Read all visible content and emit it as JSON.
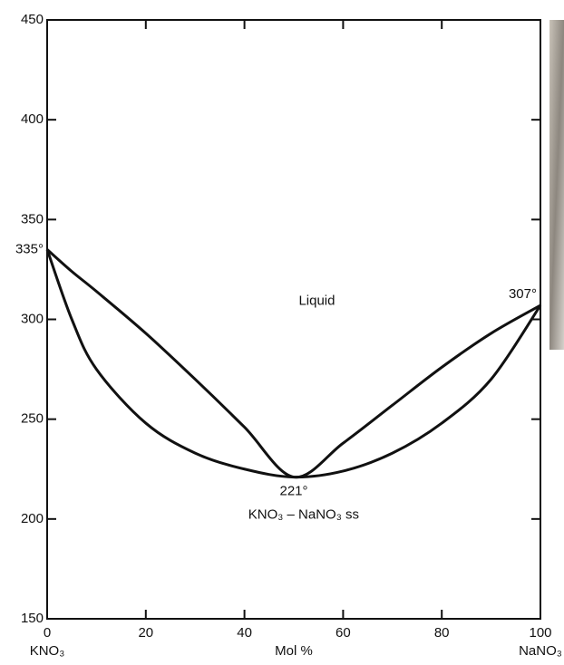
{
  "chart_data": {
    "type": "line",
    "x_label": "Mol %",
    "x_left_label": "KNO₃",
    "x_right_label": "NaNO₃",
    "xlim": [
      0,
      100
    ],
    "xticks": [
      0,
      20,
      40,
      60,
      80,
      100
    ],
    "ylim": [
      150,
      450
    ],
    "yticks": [
      150,
      200,
      250,
      300,
      350,
      400,
      450
    ],
    "x": [
      0,
      5,
      10,
      20,
      30,
      40,
      50,
      60,
      70,
      80,
      90,
      100
    ],
    "series": [
      {
        "color": "#111111",
        "values": [
          335,
          324,
          314,
          293,
          270,
          246,
          221,
          238,
          257,
          276,
          293,
          307
        ]
      },
      {
        "color": "#111111",
        "values": [
          335,
          300,
          275,
          248,
          233,
          225,
          221,
          224,
          233,
          248,
          270,
          307
        ]
      }
    ],
    "annotations": {
      "liquid": "Liquid",
      "solid": "KNO₃ – NaNO₃ ss",
      "left_point": "335°",
      "right_point": "307°",
      "min_point": "221°"
    }
  }
}
